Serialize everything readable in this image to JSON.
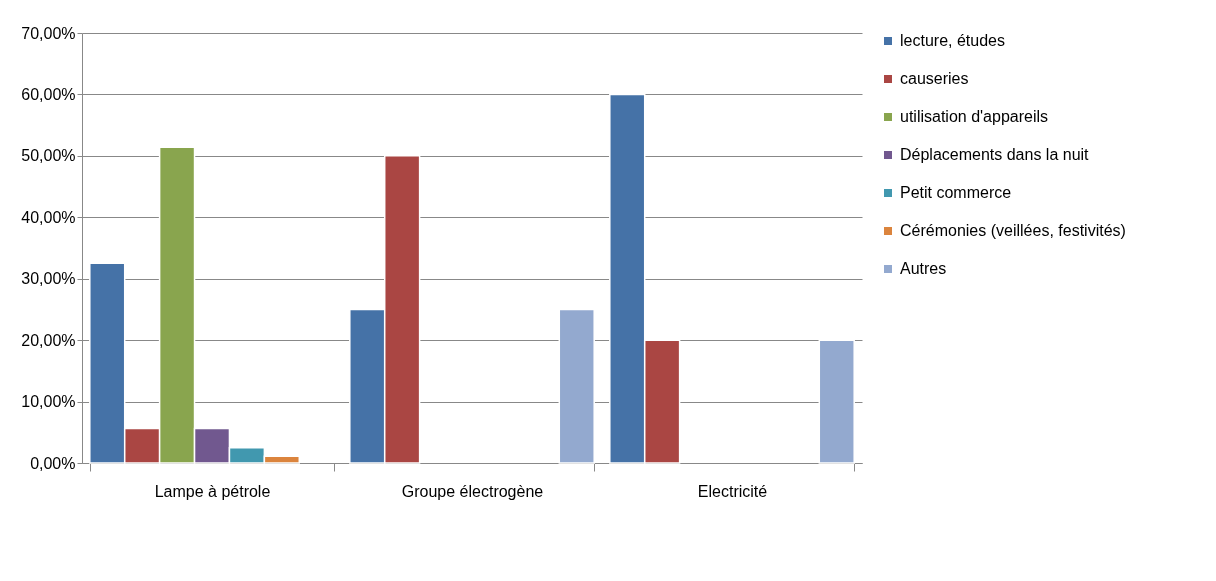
{
  "chart_data": {
    "type": "bar",
    "categories": [
      "Lampe à pétrole",
      "Groupe électrogène",
      "Electricité"
    ],
    "series": [
      {
        "name": "lecture, études",
        "color": "#4572a7",
        "values": [
          32.5,
          25,
          60
        ]
      },
      {
        "name": "causeries",
        "color": "#aa4643",
        "values": [
          5.6,
          50,
          20
        ]
      },
      {
        "name": "utilisation d'appareils",
        "color": "#89a54e",
        "values": [
          51.4,
          null,
          null
        ]
      },
      {
        "name": "Déplacements dans la nuit",
        "color": "#71588f",
        "values": [
          5.6,
          null,
          null
        ]
      },
      {
        "name": "Petit commerce",
        "color": "#4198af",
        "values": [
          2.5,
          null,
          null
        ]
      },
      {
        "name": "Cérémonies (veillées, festivités)",
        "color": "#db843d",
        "values": [
          1.1,
          null,
          null
        ]
      },
      {
        "name": "Autres",
        "color": "#93a9cf",
        "values": [
          null,
          25,
          20
        ]
      }
    ],
    "ylim": [
      0,
      70
    ],
    "yticks": [
      {
        "value": 0,
        "label": "0,00%"
      },
      {
        "value": 10,
        "label": "10,00%"
      },
      {
        "value": 20,
        "label": "20,00%"
      },
      {
        "value": 30,
        "label": "30,00%"
      },
      {
        "value": 40,
        "label": "40,00%"
      },
      {
        "value": 50,
        "label": "50,00%"
      },
      {
        "value": 60,
        "label": "60,00%"
      },
      {
        "value": 70,
        "label": "70,00%"
      }
    ],
    "grid": "y",
    "legend": "right"
  }
}
